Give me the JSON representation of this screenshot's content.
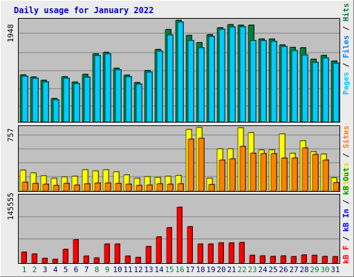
{
  "title": "Daily usage for January 2022",
  "colors": {
    "background": "#ececec",
    "plot_bg": "#c0c0c0",
    "title": "#0000cc",
    "hits": "#00ccff",
    "files": "#0080ff",
    "pages": "#008040",
    "visits": "#ffff00",
    "sites": "#ff8000",
    "kbf": "#ff0000",
    "kbin": "#0000ff",
    "kbout": "#00a000",
    "weekend_day": "#008040",
    "weekday": "#000080"
  },
  "right_labels": {
    "top": [
      {
        "text": "Pages",
        "color": "#00ccff"
      },
      {
        "text": " / ",
        "color": "#000000"
      },
      {
        "text": "Files",
        "color": "#0080ff"
      },
      {
        "text": " / ",
        "color": "#000000"
      },
      {
        "text": "Hits",
        "color": "#008040"
      }
    ],
    "middle": [
      {
        "text": "Visits",
        "color": "#dddd00"
      },
      {
        "text": " / ",
        "color": "#000000"
      },
      {
        "text": "Sites",
        "color": "#ff8000"
      }
    ],
    "bottom": [
      {
        "text": "kB F",
        "color": "#ff0000"
      },
      {
        "text": " / ",
        "color": "#000000"
      },
      {
        "text": "kB In",
        "color": "#0000ff"
      },
      {
        "text": " / ",
        "color": "#000000"
      },
      {
        "text": "kB Out",
        "color": "#00a000"
      }
    ]
  },
  "chart_data": [
    {
      "type": "bar",
      "name": "hits-files-pages",
      "ymax_label": "1948",
      "ylim": [
        0,
        2000
      ],
      "days": [
        1,
        2,
        3,
        4,
        5,
        6,
        7,
        8,
        9,
        10,
        11,
        12,
        13,
        14,
        15,
        16,
        17,
        18,
        19,
        20,
        21,
        22,
        23,
        24,
        25,
        26,
        27,
        28,
        29,
        30,
        31
      ],
      "series": [
        {
          "name": "Hits",
          "color": "#008040",
          "values": [
            915,
            875,
            810,
            455,
            880,
            775,
            925,
            1325,
            1355,
            1045,
            910,
            765,
            1000,
            1410,
            1800,
            1980,
            1685,
            1545,
            1700,
            1835,
            1895,
            1885,
            1885,
            1615,
            1615,
            1500,
            1450,
            1445,
            1220,
            1295,
            1185
          ]
        },
        {
          "name": "Files",
          "color": "#00ccff",
          "values": [
            890,
            850,
            780,
            430,
            850,
            745,
            870,
            1295,
            1325,
            1015,
            880,
            735,
            970,
            1380,
            1695,
            1945,
            1585,
            1445,
            1665,
            1805,
            1850,
            1855,
            1585,
            1585,
            1570,
            1470,
            1390,
            1305,
            1160,
            1245,
            1145
          ]
        }
      ]
    },
    {
      "type": "bar",
      "name": "visits-sites",
      "ymax_label": "757",
      "ylim": [
        0,
        800
      ],
      "days": [
        1,
        2,
        3,
        4,
        5,
        6,
        7,
        8,
        9,
        10,
        11,
        12,
        13,
        14,
        15,
        16,
        17,
        18,
        19,
        20,
        21,
        22,
        23,
        24,
        25,
        26,
        27,
        28,
        29,
        30,
        31
      ],
      "series": [
        {
          "name": "Visits",
          "color": "#ffff00",
          "values": [
            260,
            225,
            190,
            160,
            175,
            185,
            265,
            250,
            265,
            240,
            200,
            160,
            180,
            170,
            185,
            195,
            765,
            790,
            160,
            525,
            525,
            785,
            725,
            510,
            510,
            710,
            470,
            625,
            490,
            460,
            165
          ]
        },
        {
          "name": "Sites",
          "color": "#ff8000",
          "values": [
            110,
            95,
            85,
            70,
            95,
            75,
            90,
            100,
            100,
            95,
            85,
            70,
            75,
            90,
            85,
            90,
            645,
            655,
            80,
            385,
            400,
            555,
            470,
            465,
            465,
            410,
            410,
            535,
            455,
            385,
            105
          ]
        }
      ]
    },
    {
      "type": "bar",
      "name": "kbytes",
      "ymax_label": "145555",
      "ylim": [
        0,
        180000
      ],
      "days": [
        1,
        2,
        3,
        4,
        5,
        6,
        7,
        8,
        9,
        10,
        11,
        12,
        13,
        14,
        15,
        16,
        17,
        18,
        19,
        20,
        21,
        22,
        23,
        24,
        25,
        26,
        27,
        28,
        29,
        30,
        31
      ],
      "series": [
        {
          "name": "kB F",
          "color": "#ff0000",
          "values": [
            29000,
            24000,
            12500,
            10000,
            36500,
            62000,
            18500,
            13500,
            50500,
            50500,
            18500,
            15000,
            44000,
            69500,
            94000,
            148000,
            96500,
            50500,
            50500,
            53500,
            53500,
            54500,
            20500,
            19000,
            17500,
            19000,
            17000,
            21500,
            20500,
            17500,
            17000
          ]
        }
      ]
    }
  ],
  "x_axis": {
    "labels": [
      "1",
      "2",
      "3",
      "4",
      "5",
      "6",
      "7",
      "8",
      "9",
      "10",
      "11",
      "12",
      "13",
      "14",
      "15",
      "16",
      "17",
      "18",
      "19",
      "20",
      "21",
      "22",
      "23",
      "24",
      "25",
      "26",
      "27",
      "28",
      "29",
      "30",
      "31"
    ],
    "weekend_days": [
      1,
      2,
      8,
      9,
      15,
      16,
      22,
      23,
      29,
      30
    ]
  }
}
